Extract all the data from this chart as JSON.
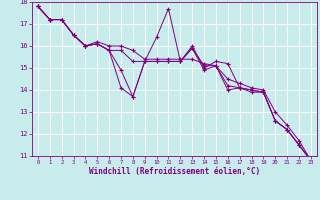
{
  "xlabel": "Windchill (Refroidissement éolien,°C)",
  "ylabel": "",
  "bg_color": "#c8ecec",
  "line_color": "#800080",
  "grid_color": "#ffffff",
  "xlim": [
    -0.5,
    23.5
  ],
  "ylim": [
    11,
    18
  ],
  "xticks": [
    0,
    1,
    2,
    3,
    4,
    5,
    6,
    7,
    8,
    9,
    10,
    11,
    12,
    13,
    14,
    15,
    16,
    17,
    18,
    19,
    20,
    21,
    22,
    23
  ],
  "yticks": [
    11,
    12,
    13,
    14,
    15,
    16,
    17,
    18
  ],
  "lines": [
    {
      "x": [
        0,
        1,
        2,
        3,
        4,
        5,
        6,
        7,
        8,
        9,
        10,
        11,
        12,
        13,
        14,
        15,
        16,
        17,
        18,
        19,
        20,
        21,
        22,
        23
      ],
      "y": [
        17.8,
        17.2,
        17.2,
        16.5,
        16.0,
        16.1,
        15.8,
        14.1,
        13.7,
        15.3,
        16.4,
        17.7,
        15.3,
        16.0,
        15.0,
        15.3,
        15.2,
        14.1,
        14.0,
        13.9,
        12.6,
        12.2,
        11.5,
        10.8
      ]
    },
    {
      "x": [
        0,
        1,
        2,
        3,
        4,
        5,
        6,
        7,
        8,
        9,
        10,
        11,
        12,
        13,
        14,
        15,
        16,
        17,
        18,
        19,
        20,
        21,
        22,
        23
      ],
      "y": [
        17.8,
        17.2,
        17.2,
        16.5,
        16.0,
        16.1,
        15.8,
        14.9,
        13.7,
        15.3,
        15.3,
        15.3,
        15.3,
        15.9,
        14.9,
        15.1,
        14.0,
        14.1,
        13.9,
        13.9,
        12.6,
        12.2,
        11.5,
        10.8
      ]
    },
    {
      "x": [
        0,
        1,
        2,
        3,
        4,
        5,
        6,
        7,
        8,
        9,
        10,
        11,
        12,
        13,
        14,
        15,
        16,
        17,
        18,
        19,
        20,
        21,
        22,
        23
      ],
      "y": [
        17.8,
        17.2,
        17.2,
        16.5,
        16.0,
        16.1,
        15.8,
        15.8,
        15.3,
        15.3,
        15.3,
        15.3,
        15.3,
        15.9,
        15.1,
        15.1,
        14.2,
        14.1,
        14.0,
        13.9,
        12.6,
        12.2,
        11.5,
        10.8
      ]
    },
    {
      "x": [
        0,
        1,
        2,
        3,
        4,
        5,
        6,
        7,
        8,
        9,
        10,
        11,
        12,
        13,
        14,
        15,
        16,
        17,
        18,
        19,
        20,
        21,
        22,
        23
      ],
      "y": [
        17.8,
        17.2,
        17.2,
        16.5,
        16.0,
        16.2,
        16.0,
        16.0,
        15.8,
        15.4,
        15.4,
        15.4,
        15.4,
        15.4,
        15.2,
        15.1,
        14.5,
        14.3,
        14.1,
        14.0,
        13.0,
        12.4,
        11.7,
        10.8
      ]
    }
  ]
}
